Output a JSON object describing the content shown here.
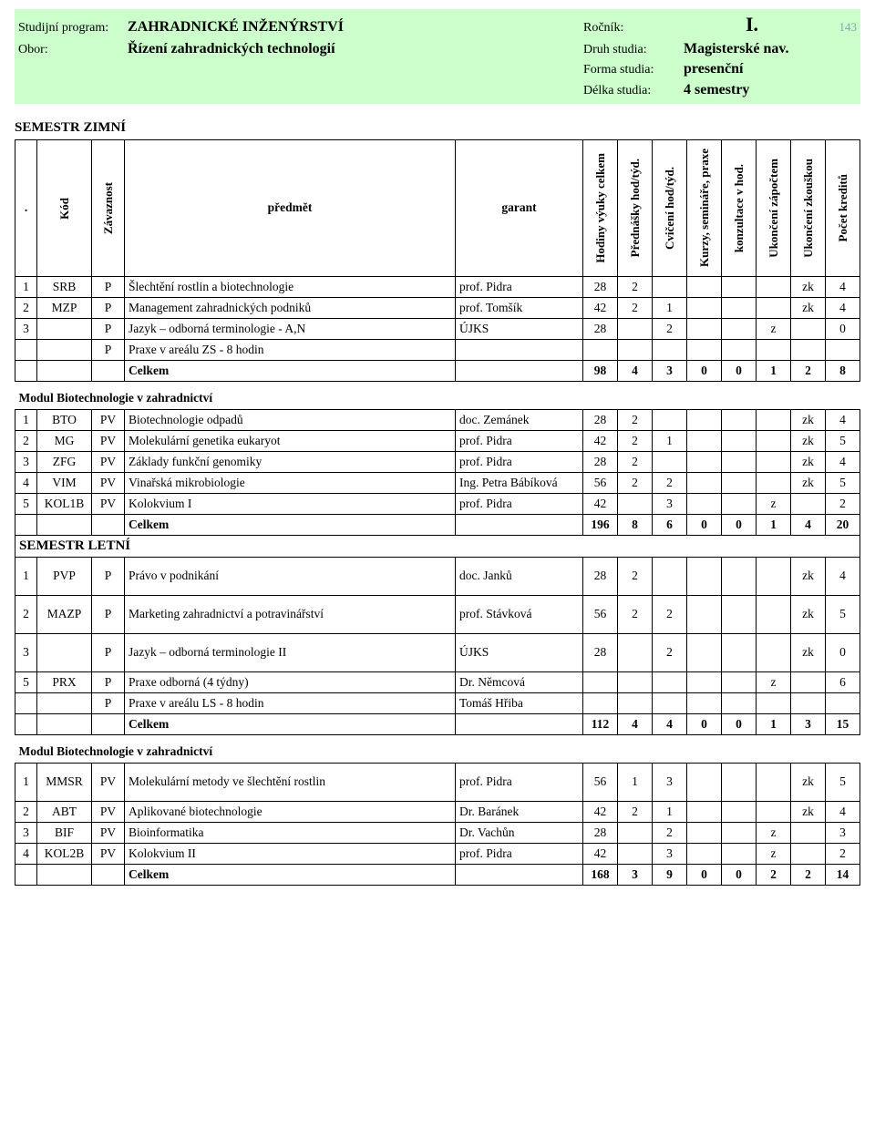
{
  "header": {
    "program_label": "Studijní program:",
    "program_value": "ZAHRADNICKÉ INŽENÝRSTVÍ",
    "rocnik_label": "Ročník:",
    "rocnik_value": "I.",
    "page_number": "143",
    "obor_label": "Obor:",
    "obor_value": "Řízení zahradnických technologií",
    "druh_label": "Druh studia:",
    "druh_value": "Magisterské nav.",
    "forma_label": "Forma studia:",
    "forma_value": "presenční",
    "delka_label": "Délka studia:",
    "delka_value": "4 semestry"
  },
  "labels": {
    "semestr_zimni": "SEMESTR ZIMNÍ",
    "semestr_letni": "SEMESTR LETNÍ",
    "modul_bio": "Modul Biotechnologie v zahradnictví",
    "celkem": "Celkem"
  },
  "columns": {
    "blank": ".",
    "kod": "Kód",
    "zavaznost": "Závaznost",
    "predmet": "předmět",
    "garant": "garant",
    "hodiny": "Hodiny výuky celkem",
    "prednasky": "Přednášky hod/týd.",
    "cviceni": "Cvičení hod/týd.",
    "kurzy": "Kurzy, semináře, praxe",
    "konzultace": "konzultace v hod.",
    "zapoctem": "Ukončení zápočtem",
    "zkouskou": "Ukončení zkouškou",
    "kredity": "Počet kreditů"
  },
  "zimni": {
    "rows": [
      {
        "idx": "1",
        "kod": "SRB",
        "zav": "P",
        "pred": "Šlechtění rostlin a biotechnologie",
        "gar": "prof. Pidra",
        "n": [
          "28",
          "2",
          "",
          "",
          "",
          "",
          "zk",
          "4"
        ]
      },
      {
        "idx": "2",
        "kod": "MZP",
        "zav": "P",
        "pred": "Management zahradnických podniků",
        "gar": "prof. Tomšík",
        "n": [
          "42",
          "2",
          "1",
          "",
          "",
          "",
          "zk",
          "4"
        ]
      },
      {
        "idx": "3",
        "kod": "",
        "zav": "P",
        "pred": "Jazyk – odborná terminologie - A,N",
        "gar": "ÚJKS",
        "n": [
          "28",
          "",
          "2",
          "",
          "",
          "z",
          "",
          "0"
        ]
      },
      {
        "idx": "",
        "kod": "",
        "zav": "P",
        "pred": "Praxe v areálu ZS - 8 hodin",
        "gar": "",
        "n": [
          "",
          "",
          "",
          "",
          "",
          "",
          "",
          ""
        ]
      }
    ],
    "totals": [
      "98",
      "4",
      "3",
      "0",
      "0",
      "1",
      "2",
      "8"
    ]
  },
  "zimni_bio": {
    "rows": [
      {
        "idx": "1",
        "kod": "BTO",
        "zav": "PV",
        "pred": "Biotechnologie odpadů",
        "gar": "doc. Zemánek",
        "n": [
          "28",
          "2",
          "",
          "",
          "",
          "",
          "zk",
          "4"
        ]
      },
      {
        "idx": "2",
        "kod": "MG",
        "zav": "PV",
        "pred": "Molekulární genetika eukaryot",
        "gar": "prof. Pidra",
        "n": [
          "42",
          "2",
          "1",
          "",
          "",
          "",
          "zk",
          "5"
        ]
      },
      {
        "idx": "3",
        "kod": "ZFG",
        "zav": "PV",
        "pred": "Základy funkční genomiky",
        "gar": "prof. Pidra",
        "n": [
          "28",
          "2",
          "",
          "",
          "",
          "",
          "zk",
          "4"
        ]
      },
      {
        "idx": "4",
        "kod": "VIM",
        "zav": "PV",
        "pred": "Vinařská mikrobiologie",
        "gar": "Ing. Petra Bábíková",
        "n": [
          "56",
          "2",
          "2",
          "",
          "",
          "",
          "zk",
          "5"
        ]
      },
      {
        "idx": "5",
        "kod": "KOL1B",
        "zav": "PV",
        "pred": "Kolokvium I",
        "gar": "prof. Pidra",
        "n": [
          "42",
          "",
          "3",
          "",
          "",
          "z",
          "",
          "2"
        ]
      }
    ],
    "totals": [
      "196",
      "8",
      "6",
      "0",
      "0",
      "1",
      "4",
      "20"
    ]
  },
  "letni": {
    "rows": [
      {
        "idx": "1",
        "kod": "PVP",
        "zav": "P",
        "pred": "Právo v podnikání",
        "gar": "doc. Janků",
        "n": [
          "28",
          "2",
          "",
          "",
          "",
          "",
          "zk",
          "4"
        ]
      },
      {
        "idx": "2",
        "kod": "MAZP",
        "zav": "P",
        "pred": "Marketing zahradnictví a potravinářství",
        "gar": "prof. Stávková",
        "n": [
          "56",
          "2",
          "2",
          "",
          "",
          "",
          "zk",
          "5"
        ]
      },
      {
        "idx": "3",
        "kod": "",
        "zav": "P",
        "pred": "Jazyk – odborná terminologie II",
        "gar": "ÚJKS",
        "n": [
          "28",
          "",
          "2",
          "",
          "",
          "",
          "zk",
          "0"
        ]
      },
      {
        "idx": "5",
        "kod": "PRX",
        "zav": "P",
        "pred": "Praxe odborná (4 týdny)",
        "gar": "Dr. Němcová",
        "n": [
          "",
          "",
          "",
          "",
          "",
          "z",
          "",
          "6"
        ]
      },
      {
        "idx": "",
        "kod": "",
        "zav": "P",
        "pred": "Praxe v areálu LS - 8 hodin",
        "gar": "Tomáš Hřiba",
        "n": [
          "",
          "",
          "",
          "",
          "",
          "",
          "",
          ""
        ]
      }
    ],
    "totals": [
      "112",
      "4",
      "4",
      "0",
      "0",
      "1",
      "3",
      "15"
    ]
  },
  "letni_bio": {
    "rows": [
      {
        "idx": "1",
        "kod": "MMSR",
        "zav": "PV",
        "pred": "Molekulární metody ve šlechtění rostlin",
        "gar": "prof. Pidra",
        "n": [
          "56",
          "1",
          "3",
          "",
          "",
          "",
          "zk",
          "5"
        ]
      },
      {
        "idx": "2",
        "kod": "ABT",
        "zav": "PV",
        "pred": "Aplikované biotechnologie",
        "gar": "Dr. Baránek",
        "n": [
          "42",
          "2",
          "1",
          "",
          "",
          "",
          "zk",
          "4"
        ]
      },
      {
        "idx": "3",
        "kod": "BIF",
        "zav": "PV",
        "pred": "Bioinformatika",
        "gar": "Dr. Vachůn",
        "n": [
          "28",
          "",
          "2",
          "",
          "",
          "z",
          "",
          "3"
        ]
      },
      {
        "idx": "4",
        "kod": "KOL2B",
        "zav": "PV",
        "pred": "Kolokvium II",
        "gar": "prof. Pidra",
        "n": [
          "42",
          "",
          "3",
          "",
          "",
          "z",
          "",
          "2"
        ]
      }
    ],
    "totals": [
      "168",
      "3",
      "9",
      "0",
      "0",
      "2",
      "2",
      "14"
    ]
  },
  "style": {
    "header_bg": "#ccffcc",
    "border_color": "#000000",
    "font_family": "Times New Roman",
    "base_font_size_pt": 11
  }
}
